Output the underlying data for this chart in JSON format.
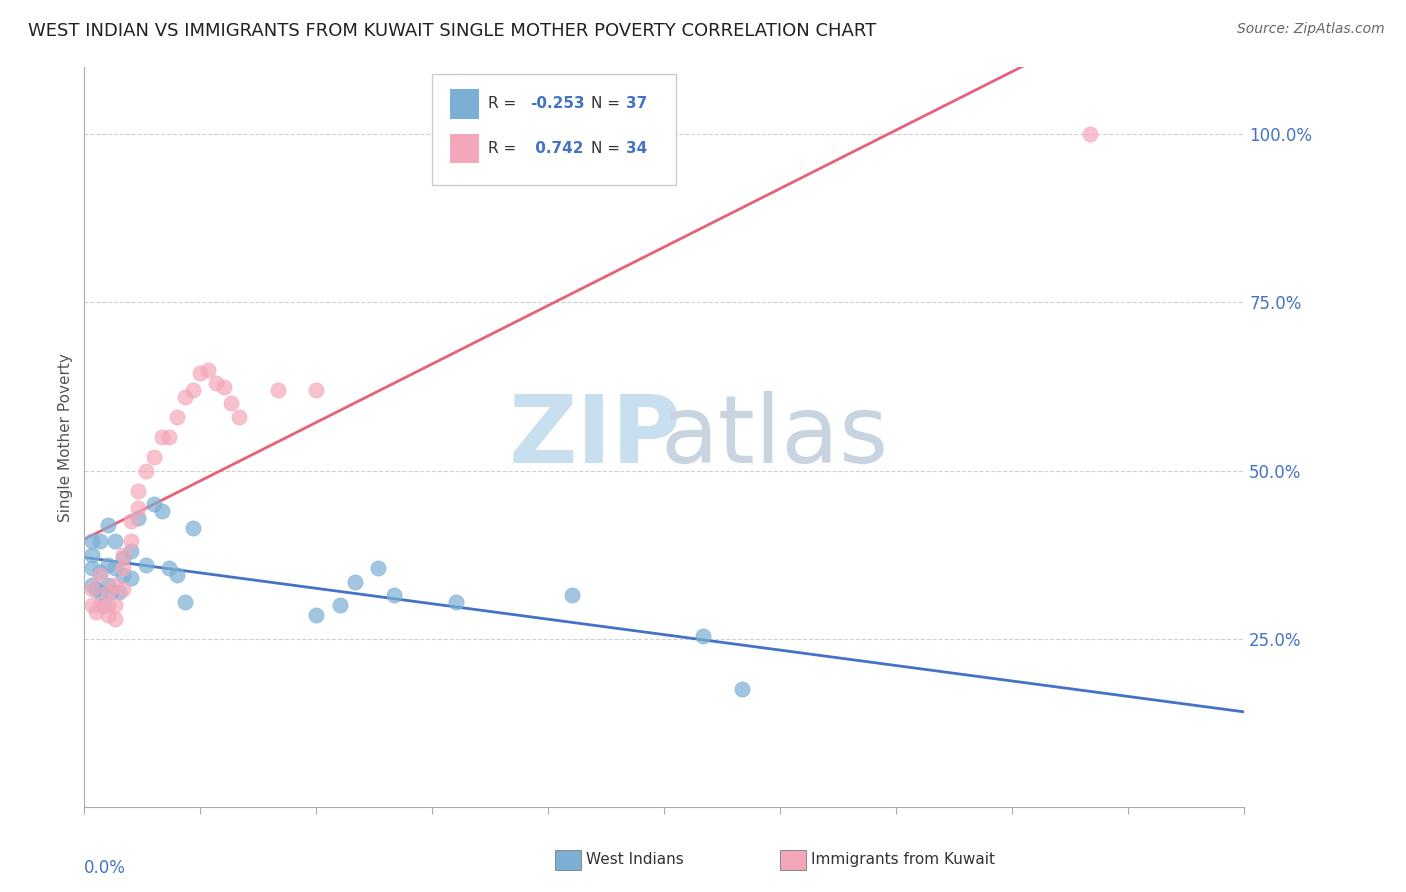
{
  "title": "WEST INDIAN VS IMMIGRANTS FROM KUWAIT SINGLE MOTHER POVERTY CORRELATION CHART",
  "source": "Source: ZipAtlas.com",
  "ylabel": "Single Mother Poverty",
  "r_west": -0.253,
  "n_west": 37,
  "r_kuwait": 0.742,
  "n_kuwait": 34,
  "west_color": "#7bafd4",
  "kuwait_color": "#f4a7b9",
  "west_line_color": "#4472c4",
  "kuwait_line_color": "#e8607a",
  "background_color": "#ffffff",
  "west_x": [
    0.001,
    0.001,
    0.001,
    0.001,
    0.0015,
    0.002,
    0.002,
    0.002,
    0.0025,
    0.003,
    0.003,
    0.003,
    0.0035,
    0.004,
    0.004,
    0.0045,
    0.005,
    0.005,
    0.006,
    0.006,
    0.007,
    0.008,
    0.009,
    0.01,
    0.011,
    0.012,
    0.013,
    0.014,
    0.03,
    0.033,
    0.035,
    0.038,
    0.04,
    0.048,
    0.063,
    0.08,
    0.085
  ],
  "west_y": [
    0.33,
    0.355,
    0.375,
    0.395,
    0.325,
    0.32,
    0.35,
    0.395,
    0.3,
    0.33,
    0.36,
    0.42,
    0.32,
    0.355,
    0.395,
    0.32,
    0.345,
    0.37,
    0.34,
    0.38,
    0.43,
    0.36,
    0.45,
    0.44,
    0.355,
    0.345,
    0.305,
    0.415,
    0.285,
    0.3,
    0.335,
    0.355,
    0.315,
    0.305,
    0.315,
    0.255,
    0.175
  ],
  "kuwait_x": [
    0.001,
    0.001,
    0.0015,
    0.002,
    0.002,
    0.003,
    0.003,
    0.003,
    0.004,
    0.004,
    0.004,
    0.005,
    0.005,
    0.005,
    0.006,
    0.006,
    0.007,
    0.007,
    0.008,
    0.009,
    0.01,
    0.011,
    0.012,
    0.013,
    0.014,
    0.015,
    0.016,
    0.017,
    0.018,
    0.019,
    0.02,
    0.025,
    0.03,
    0.13
  ],
  "kuwait_y": [
    0.3,
    0.325,
    0.29,
    0.3,
    0.345,
    0.285,
    0.3,
    0.32,
    0.28,
    0.3,
    0.33,
    0.325,
    0.355,
    0.375,
    0.395,
    0.425,
    0.445,
    0.47,
    0.5,
    0.52,
    0.55,
    0.55,
    0.58,
    0.61,
    0.62,
    0.645,
    0.65,
    0.63,
    0.625,
    0.6,
    0.58,
    0.62,
    0.62,
    1.0
  ],
  "xlim": [
    0.0,
    0.15
  ],
  "ylim": [
    0.0,
    1.1
  ],
  "y_tick_vals": [
    0.25,
    0.5,
    0.75,
    1.0
  ],
  "y_tick_labels": [
    "25.0%",
    "50.0%",
    "75.0%",
    "100.0%"
  ]
}
